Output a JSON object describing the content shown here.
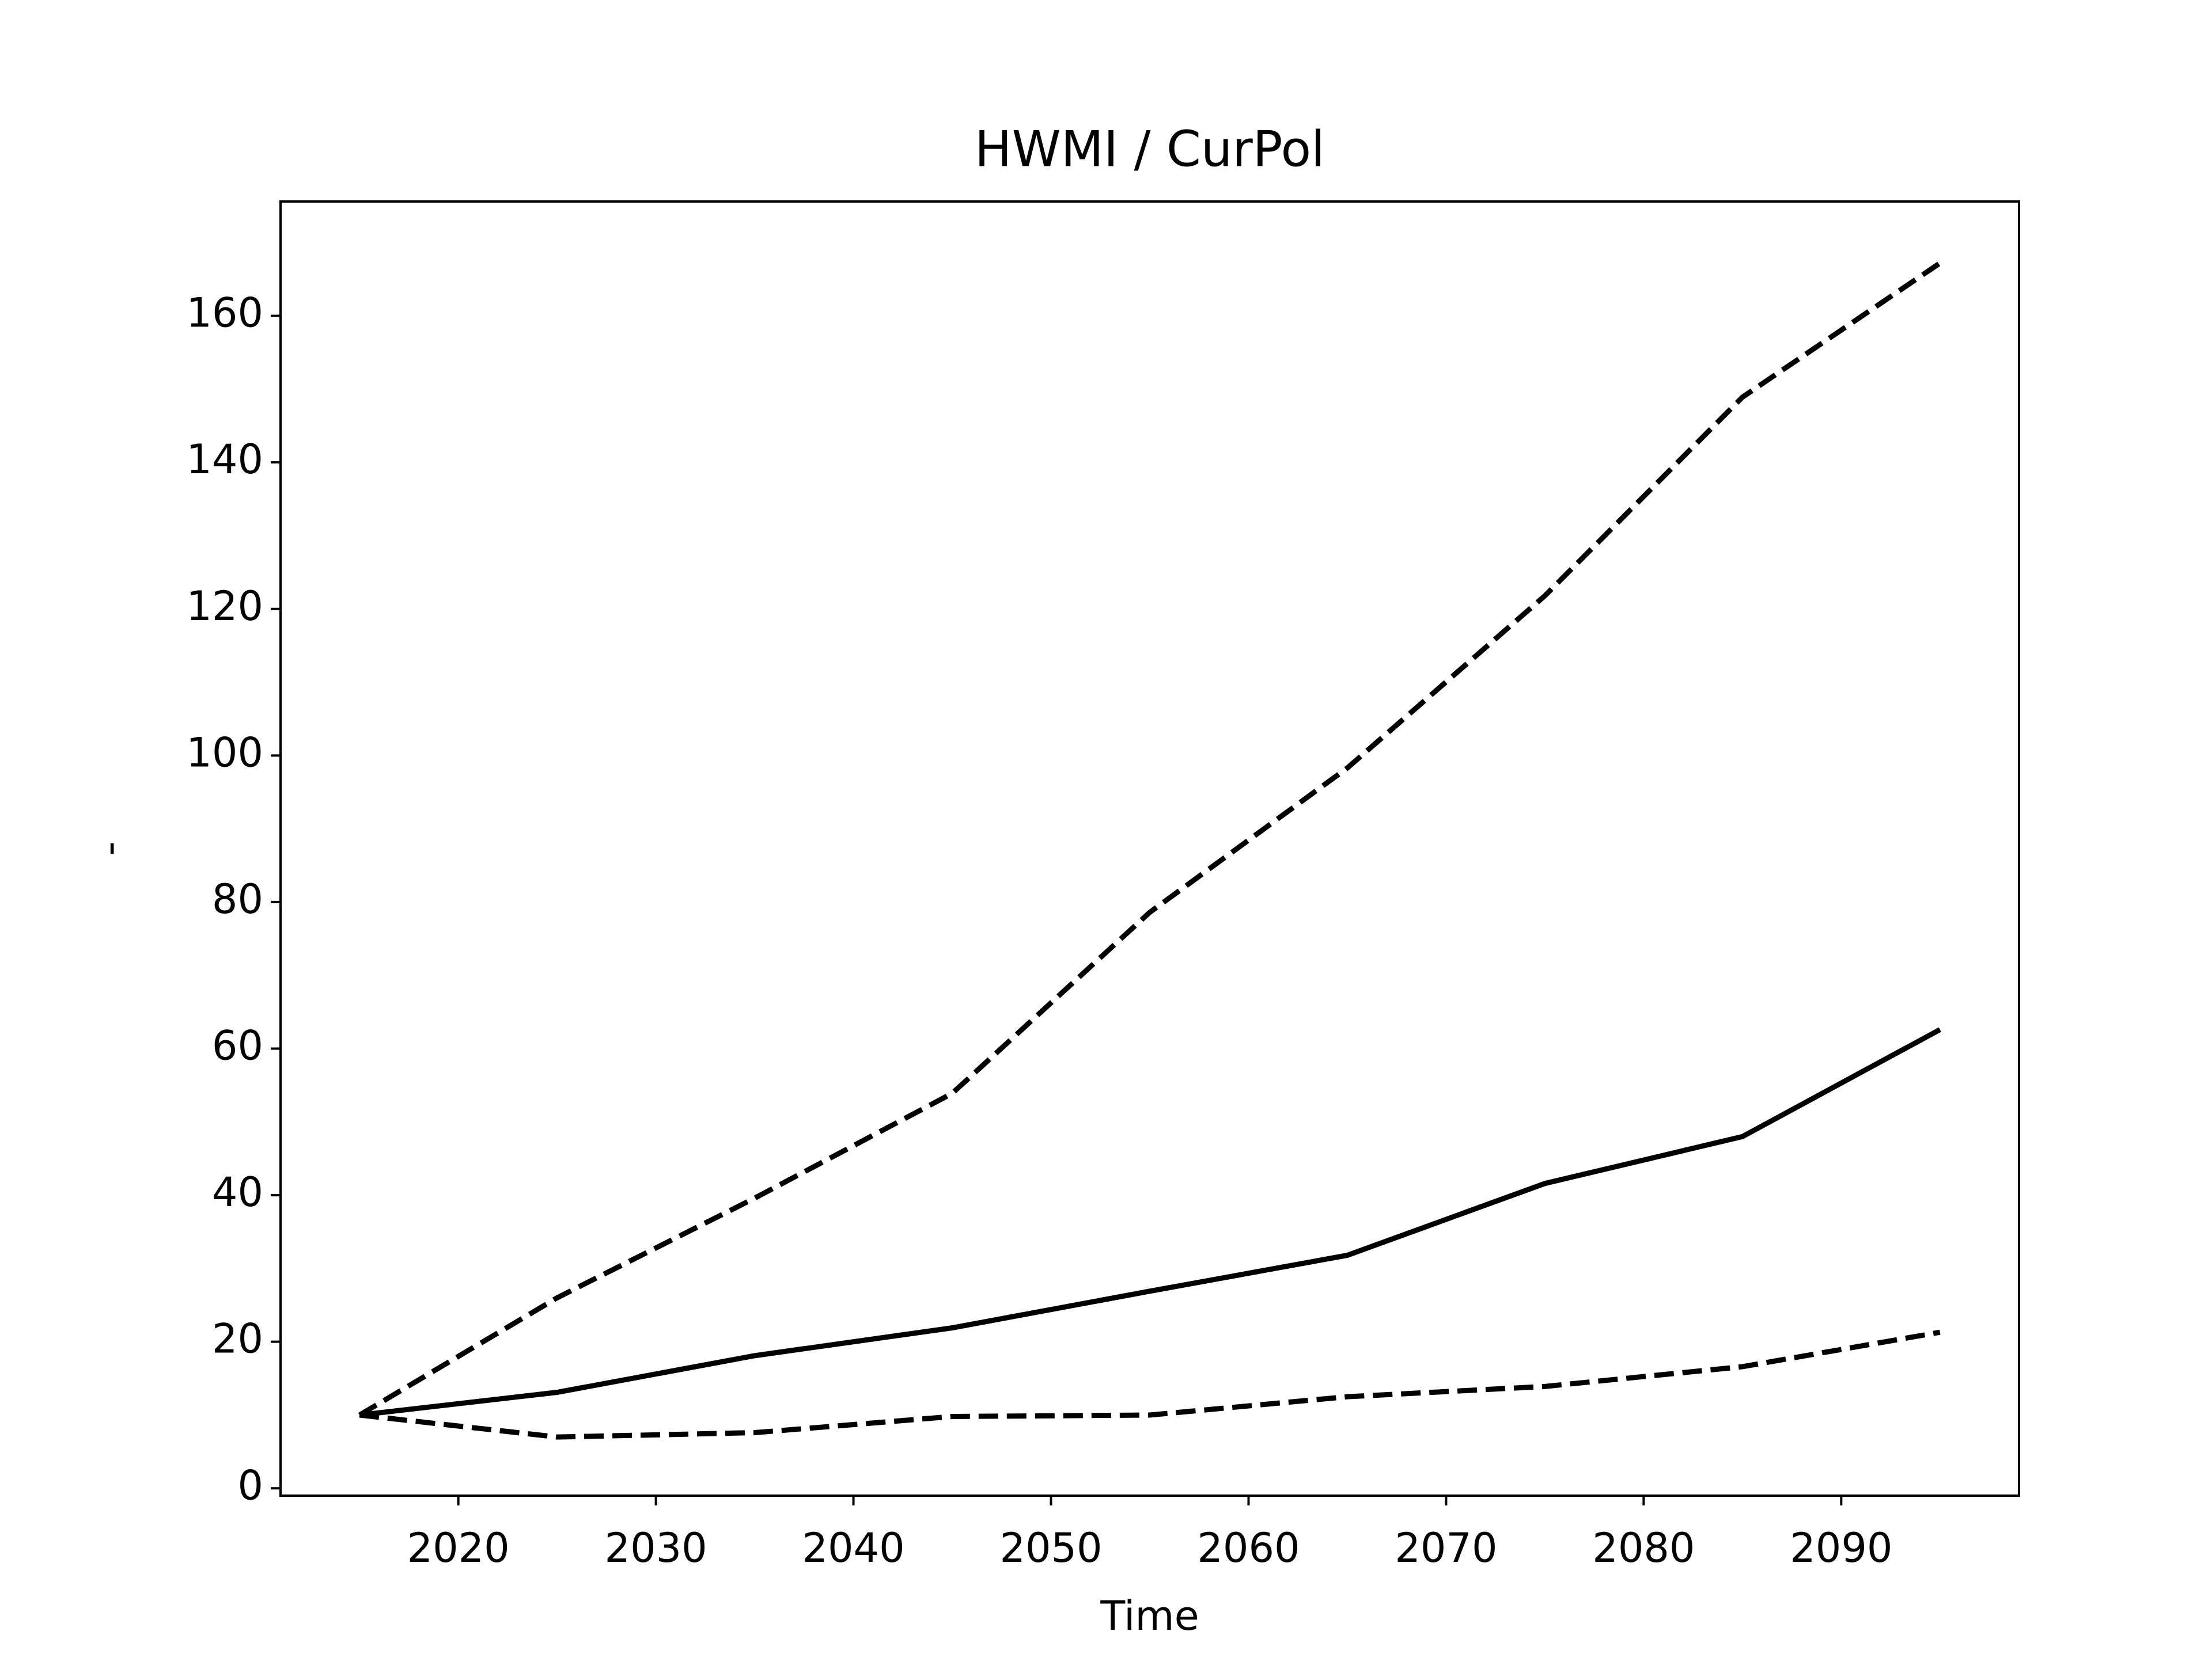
{
  "chart_data": {
    "type": "line",
    "title": "HWMI / CurPol",
    "xlabel": "Time",
    "ylabel": "-",
    "x": [
      2015,
      2025,
      2035,
      2045,
      2055,
      2065,
      2075,
      2085,
      2095
    ],
    "series": [
      {
        "color": "#000000",
        "style": "dashed",
        "values": [
          10,
          26,
          39.6,
          53.9,
          78.6,
          98.3,
          121.8,
          148.9,
          167.2
        ]
      },
      {
        "color": "#000000",
        "style": "solid",
        "values": [
          10,
          13.1,
          18.1,
          21.9,
          26.9,
          31.8,
          41.6,
          48,
          62.6
        ]
      },
      {
        "color": "#000000",
        "style": "dashed",
        "values": [
          10,
          7,
          7.6,
          9.8,
          10,
          12.5,
          13.9,
          16.6,
          21.3
        ]
      }
    ],
    "xlim": [
      2011,
      2099
    ],
    "xticks": [
      2020,
      2030,
      2040,
      2050,
      2060,
      2070,
      2080,
      2090
    ],
    "ylim": [
      -1,
      175.6
    ],
    "yticks": [
      0,
      20,
      40,
      60,
      80,
      100,
      120,
      140,
      160
    ],
    "grid": false
  }
}
